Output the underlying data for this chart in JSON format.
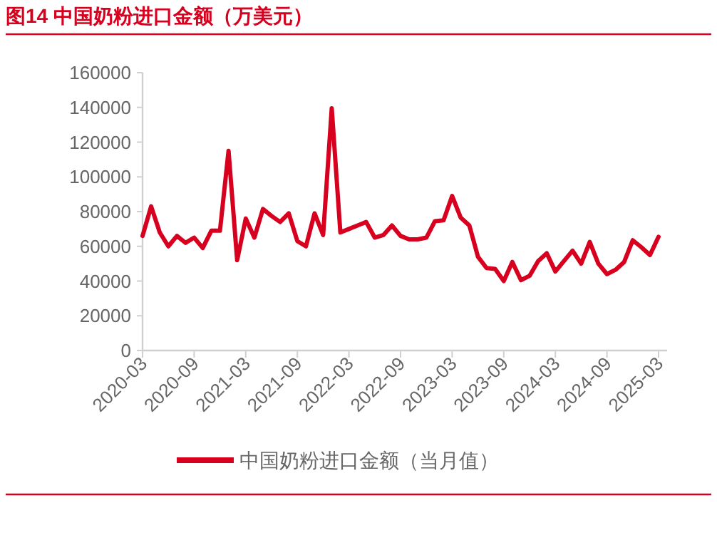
{
  "chart_data": {
    "type": "line",
    "title": "图14  中国奶粉进口金额（万美元）",
    "categories": [
      "2020-03",
      null,
      null,
      null,
      null,
      null,
      "2020-09",
      null,
      null,
      null,
      null,
      null,
      "2021-03",
      null,
      null,
      null,
      null,
      null,
      "2021-09",
      null,
      null,
      null,
      null,
      null,
      "2022-03",
      null,
      null,
      null,
      null,
      null,
      "2022-09",
      null,
      null,
      null,
      null,
      null,
      "2023-03",
      null,
      null,
      null,
      null,
      null,
      "2023-09",
      null,
      null,
      null,
      null,
      null,
      "2024-03",
      null,
      null,
      null,
      null,
      null,
      "2024-09",
      null,
      null,
      null,
      null,
      null,
      "2025-03"
    ],
    "series": [
      {
        "name": "中国奶粉进口金额（当月值）",
        "color": "#d7001f",
        "values": [
          66000,
          83000,
          68000,
          60000,
          66000,
          62000,
          65000,
          59000,
          69000,
          69000,
          115000,
          52000,
          76000,
          65000,
          81500,
          77500,
          74000,
          79000,
          63000,
          60000,
          79000,
          66500,
          139500,
          68000,
          70000,
          72000,
          74000,
          65000,
          66500,
          72000,
          66000,
          64000,
          64000,
          65000,
          74500,
          75000,
          89000,
          76500,
          72000,
          54000,
          47500,
          47000,
          40000,
          51000,
          40500,
          43000,
          51500,
          56000,
          45500,
          51500,
          57500,
          50000,
          62500,
          50000,
          44000,
          46500,
          51000,
          63500,
          59500,
          55000,
          65500
        ]
      }
    ],
    "ylim": [
      0,
      160000
    ],
    "yticks": [
      0,
      20000,
      40000,
      60000,
      80000,
      100000,
      120000,
      140000,
      160000
    ],
    "grid": false,
    "legend": "bottom",
    "marker": "none",
    "line_style": "solid"
  }
}
